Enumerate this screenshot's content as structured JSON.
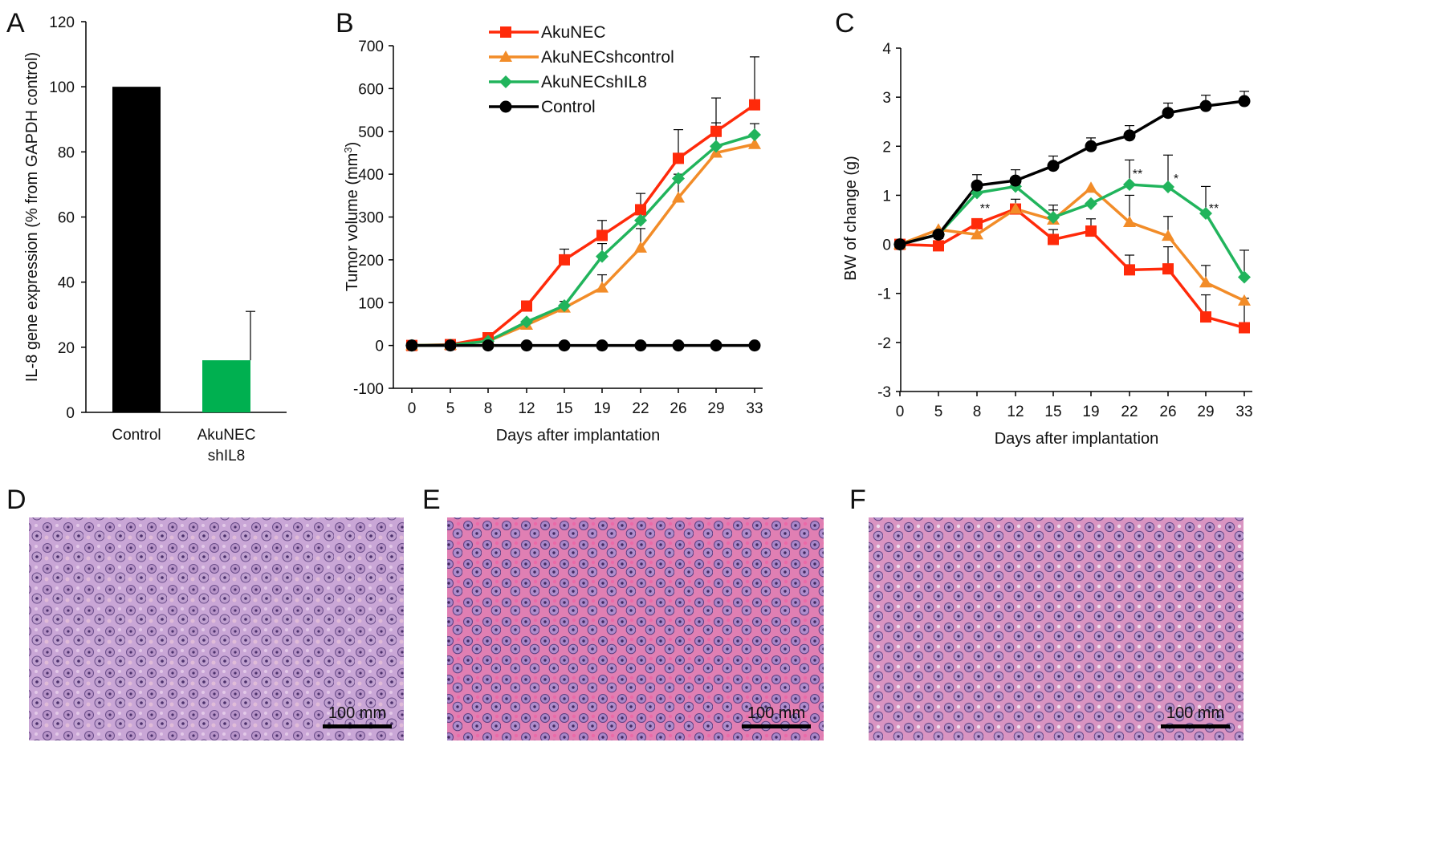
{
  "chart_data": [
    {
      "panel": "A",
      "type": "bar",
      "categories": [
        "Control",
        "AkuNEC\nshIL8"
      ],
      "category_lines": [
        [
          "Control"
        ],
        [
          "AkuNEC",
          "shIL8"
        ]
      ],
      "values": [
        100,
        16
      ],
      "errors": [
        0,
        15
      ],
      "colors": [
        "#000000",
        "#00b050"
      ],
      "ylabel": "IL-8 gene expression (% from GAPDH control)",
      "ylim": [
        0,
        120
      ],
      "yticks": [
        0,
        20,
        40,
        60,
        80,
        100,
        120
      ]
    },
    {
      "panel": "B",
      "type": "line",
      "x": [
        0,
        5,
        8,
        12,
        15,
        19,
        22,
        26,
        29,
        33
      ],
      "xlabel": "Days after implantation",
      "ylabel": "Tumor volume (mm3)",
      "ylabel_main": "Tumor volume (mm",
      "ylabel_sup": "3",
      "ylabel_end": ")",
      "ylim": [
        -100,
        700
      ],
      "yticks": [
        -100,
        0,
        100,
        200,
        300,
        400,
        500,
        600,
        700
      ],
      "series": [
        {
          "name": "AkuNEC",
          "color": "#ff2a0a",
          "marker": "square",
          "values": [
            0,
            2,
            18,
            92,
            200,
            257,
            317,
            437,
            500,
            562
          ],
          "errors": [
            0,
            0,
            0,
            12,
            25,
            35,
            38,
            67,
            78,
            112
          ]
        },
        {
          "name": "AkuNECshcontrol",
          "color": "#f28c28",
          "marker": "triangle",
          "values": [
            0,
            1,
            10,
            48,
            88,
            135,
            228,
            345,
            450,
            470
          ],
          "errors": [
            0,
            0,
            0,
            0,
            15,
            30,
            45,
            55,
            70,
            48
          ]
        },
        {
          "name": "AkuNECshIL8",
          "color": "#21b45c",
          "marker": "diamond",
          "values": [
            0,
            1,
            10,
            55,
            93,
            208,
            292,
            390,
            465,
            492
          ],
          "errors": [
            0,
            0,
            0,
            0,
            0,
            30,
            0,
            0,
            0,
            0
          ]
        },
        {
          "name": "Control",
          "color": "#000000",
          "marker": "circle",
          "values": [
            0,
            0,
            0,
            0,
            0,
            0,
            0,
            0,
            0,
            0
          ],
          "errors": [
            0,
            0,
            0,
            0,
            0,
            0,
            0,
            0,
            0,
            0
          ]
        }
      ]
    },
    {
      "panel": "C",
      "type": "line",
      "x": [
        0,
        5,
        8,
        12,
        15,
        19,
        22,
        26,
        29,
        33
      ],
      "xlabel": "Days after implantation",
      "ylabel": "BW of change (g)",
      "ylim": [
        -3,
        4
      ],
      "yticks": [
        -3,
        -2,
        -1,
        0,
        1,
        2,
        3,
        4
      ],
      "annotations": [
        {
          "text": "**",
          "x_index": 2,
          "y": 0.65
        },
        {
          "text": "**",
          "x_index": 6,
          "y": 1.35
        },
        {
          "text": "*",
          "x_index": 7,
          "y": 1.25
        },
        {
          "text": "**",
          "x_index": 8,
          "y": 0.65
        }
      ],
      "series": [
        {
          "name": "AkuNEC",
          "color": "#ff2a0a",
          "marker": "square",
          "values": [
            0,
            -0.03,
            0.42,
            0.72,
            0.1,
            0.27,
            -0.52,
            -0.5,
            -1.48,
            -1.7
          ],
          "errors": [
            0,
            0.15,
            0,
            0.2,
            0.2,
            0.25,
            0.3,
            0.45,
            0.45,
            0.6
          ]
        },
        {
          "name": "AkuNECshcontrol",
          "color": "#f28c28",
          "marker": "triangle",
          "values": [
            0,
            0.3,
            0.2,
            0.72,
            0.5,
            1.15,
            0.45,
            0.17,
            -0.78,
            -1.15
          ],
          "errors": [
            0,
            0,
            0.25,
            0,
            0.2,
            0,
            0.55,
            0.4,
            0.35,
            0
          ]
        },
        {
          "name": "AkuNECshIL8",
          "color": "#21b45c",
          "marker": "diamond",
          "values": [
            0,
            0.2,
            1.05,
            1.18,
            0.55,
            0.83,
            1.22,
            1.17,
            0.63,
            -0.67
          ],
          "errors": [
            0,
            0,
            0,
            0,
            0.25,
            0,
            0.5,
            0.65,
            0.55,
            0.55
          ]
        },
        {
          "name": "Control",
          "color": "#000000",
          "marker": "circle",
          "values": [
            0,
            0.2,
            1.2,
            1.3,
            1.6,
            2.0,
            2.22,
            2.68,
            2.82,
            2.92
          ],
          "errors": [
            0,
            0,
            0.22,
            0.22,
            0.2,
            0.17,
            0.2,
            0.2,
            0.22,
            0.2
          ]
        }
      ]
    }
  ],
  "legend": [
    "AkuNEC",
    "AkuNECshcontrol",
    "AkuNECshIL8",
    "Control"
  ],
  "micrographs": [
    {
      "panel": "D",
      "scale_label": "100 mm"
    },
    {
      "panel": "E",
      "scale_label": "100 mm"
    },
    {
      "panel": "F",
      "scale_label": "100 mm"
    }
  ]
}
